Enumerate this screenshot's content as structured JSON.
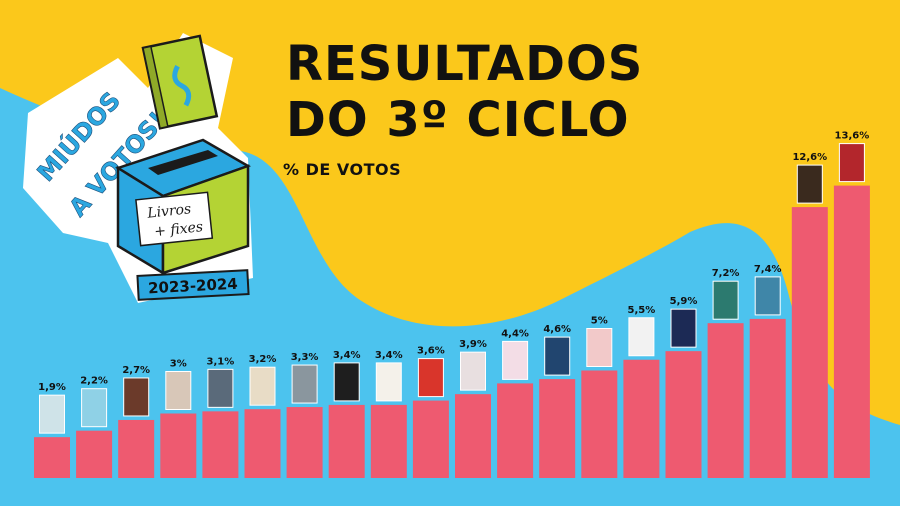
{
  "header": {
    "title_line1": "RESULTADOS",
    "title_line2": "DO 3º CICLO",
    "subtitle": "% DE VOTOS"
  },
  "logo": {
    "line1": "MIÚDOS",
    "line2": "A VOTOS!",
    "box_line1": "Livros",
    "box_line2": "+ fixes",
    "year": "2023-2024"
  },
  "colors": {
    "background_yellow": "#fbc81b",
    "background_blue": "#4cc3ee",
    "bar": "#ee5a70",
    "box_teal": "#2ba7e0",
    "box_green": "#b4d334"
  },
  "chart_data": {
    "type": "bar",
    "categories": [
      "",
      "",
      "",
      "",
      "",
      "",
      "",
      "",
      "",
      "",
      "",
      "",
      "",
      "",
      "",
      "",
      "",
      "",
      "",
      ""
    ],
    "values": [
      1.9,
      2.2,
      2.7,
      3,
      3.1,
      3.2,
      3.3,
      3.4,
      3.4,
      3.6,
      3.9,
      4.4,
      4.6,
      5,
      5.5,
      5.9,
      7.2,
      7.4,
      12.6,
      13.6
    ],
    "value_labels": [
      "1,9%",
      "2,2%",
      "2,7%",
      "3%",
      "3,1%",
      "3,2%",
      "3,3%",
      "3,4%",
      "3,4%",
      "3,6%",
      "3,9%",
      "4,4%",
      "4,6%",
      "5%",
      "5,5%",
      "5,9%",
      "7,2%",
      "7,4%",
      "12,6%",
      "13,6%"
    ],
    "book_cover_colors": [
      "#cfe3e8",
      "#8fd1e6",
      "#6b3a2a",
      "#d8c7b8",
      "#5a6a7a",
      "#e8dcc6",
      "#8a969e",
      "#1e1e1e",
      "#f4f1ea",
      "#d9352b",
      "#e8dfe0",
      "#f3dde6",
      "#21456f",
      "#f2c9c9",
      "#f2f2f2",
      "#1c2a55",
      "#2c7a6f",
      "#3f86a8",
      "#3a2a1e",
      "#b3262c"
    ],
    "ylim": [
      0,
      14
    ],
    "grid": false,
    "legend": "none"
  }
}
